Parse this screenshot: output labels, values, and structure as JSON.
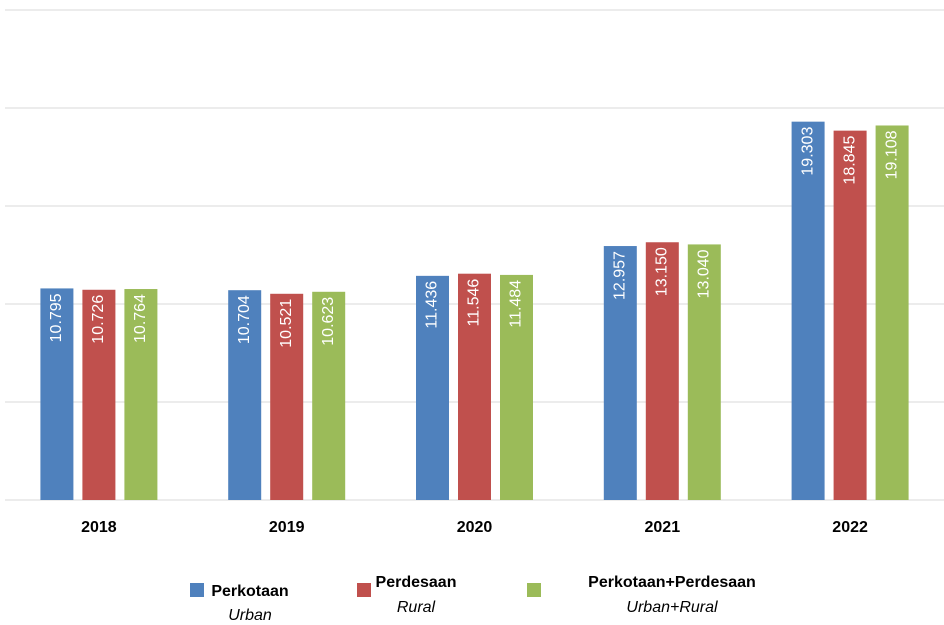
{
  "chart_data": {
    "type": "bar",
    "categories": [
      "2018",
      "2019",
      "2020",
      "2021",
      "2022"
    ],
    "series": [
      {
        "name": "Perkotaan",
        "subtitle": "Urban",
        "color": "#4f81bd",
        "values": [
          10.795,
          10.704,
          11.436,
          12.957,
          19.303
        ],
        "value_labels": [
          "10.795",
          "10.704",
          "11.436",
          "12.957",
          "19.303"
        ]
      },
      {
        "name": "Perdesaan",
        "subtitle": "Rural",
        "color": "#c0504d",
        "values": [
          10.726,
          10.521,
          11.546,
          13.15,
          18.845
        ],
        "value_labels": [
          "10.726",
          "10.521",
          "11.546",
          "13.150",
          "18.845"
        ]
      },
      {
        "name": "Perkotaan+Perdesaan",
        "subtitle": "Urban+Rural",
        "color": "#9bbb59",
        "values": [
          10.764,
          10.623,
          11.484,
          13.04,
          19.108
        ],
        "value_labels": [
          "10.764",
          "10.623",
          "11.484",
          "13.040",
          "19.108"
        ]
      }
    ],
    "ylim": [
      0,
      25
    ],
    "yticks": [
      0,
      5,
      10,
      15,
      20,
      25
    ],
    "grid": true,
    "legend": "bottom"
  }
}
